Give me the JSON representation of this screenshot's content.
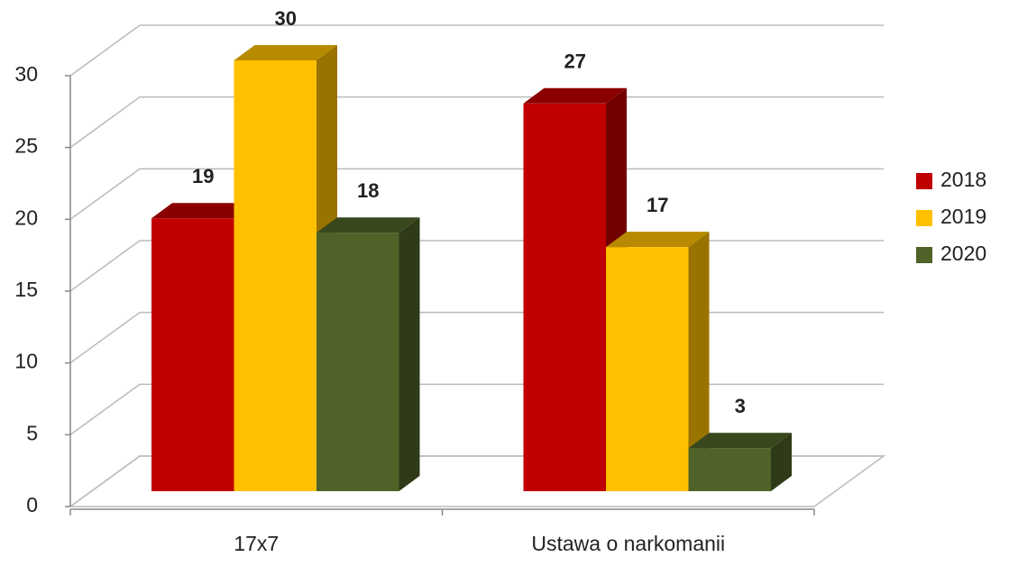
{
  "chart_data": {
    "type": "bar",
    "categories": [
      "17x7",
      "Ustawa o narkomanii"
    ],
    "series": [
      {
        "name": "2018",
        "color": "#c00000",
        "values": [
          19,
          27
        ]
      },
      {
        "name": "2019",
        "color": "#ffc000",
        "values": [
          30,
          17
        ]
      },
      {
        "name": "2020",
        "color": "#4f6228",
        "values": [
          18,
          3
        ]
      }
    ],
    "ylim": [
      0,
      30
    ],
    "yticks": [
      0,
      5,
      10,
      15,
      20,
      25,
      30
    ],
    "grid": true,
    "legend": "right"
  }
}
